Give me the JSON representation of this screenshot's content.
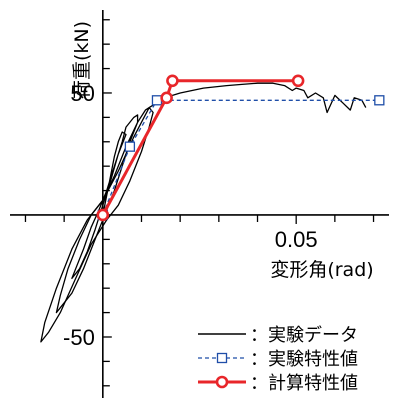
{
  "chart_data": {
    "type": "line",
    "xlabel": "変形角(rad)",
    "ylabel": "荷重(kN)",
    "xlim": [
      -0.024,
      0.074
    ],
    "ylim": [
      -75,
      84
    ],
    "x_tick_labels": [
      {
        "value": 0.05,
        "label": "0.05"
      }
    ],
    "y_tick_labels": [
      {
        "value": 50,
        "label": "50"
      },
      {
        "value": -50,
        "label": "-50"
      }
    ],
    "x_minor_step": 0.01,
    "y_minor_step": 10,
    "legend_position": "bottom-right",
    "colors": {
      "experiment": "#000000",
      "characteristic": "#1f4ea8",
      "calculated": "#e8262a"
    },
    "series": [
      {
        "name": "実験データ",
        "style": "solid-black",
        "loops": [
          [
            [
              0,
              0
            ],
            [
              0.001,
              8
            ],
            [
              0.002,
              16
            ],
            [
              0.003,
              24
            ],
            [
              0.004,
              30
            ],
            [
              0.005,
              34
            ],
            [
              0.006,
              33
            ],
            [
              0.004,
              25
            ],
            [
              0.002,
              14
            ],
            [
              0,
              4
            ],
            [
              -0.002,
              -6
            ],
            [
              -0.004,
              -15
            ],
            [
              -0.006,
              -22
            ],
            [
              -0.008,
              -26
            ],
            [
              -0.007,
              -22
            ],
            [
              -0.005,
              -14
            ],
            [
              -0.003,
              -5
            ],
            [
              -0.001,
              2
            ],
            [
              0.001,
              10
            ],
            [
              0.003,
              20
            ],
            [
              0.005,
              30
            ]
          ],
          [
            [
              0.005,
              30
            ],
            [
              0.006,
              36
            ],
            [
              0.008,
              40
            ],
            [
              0.009,
              41
            ],
            [
              0.009,
              38
            ],
            [
              0.007,
              30
            ],
            [
              0.005,
              20
            ],
            [
              0.003,
              10
            ],
            [
              0.001,
              2
            ],
            [
              -0.002,
              -10
            ],
            [
              -0.005,
              -22
            ],
            [
              -0.008,
              -32
            ],
            [
              -0.011,
              -38
            ],
            [
              -0.012,
              -40
            ],
            [
              -0.011,
              -33
            ],
            [
              -0.009,
              -22
            ],
            [
              -0.006,
              -10
            ],
            [
              -0.003,
              0
            ],
            [
              0,
              6
            ],
            [
              0.003,
              16
            ],
            [
              0.006,
              28
            ],
            [
              0.009,
              38
            ]
          ],
          [
            [
              0.009,
              38
            ],
            [
              0.011,
              43
            ],
            [
              0.012,
              44
            ],
            [
              0.013,
              42
            ],
            [
              0.012,
              36
            ],
            [
              0.01,
              26
            ],
            [
              0.007,
              14
            ],
            [
              0.004,
              4
            ],
            [
              0.001,
              -2
            ],
            [
              -0.003,
              -12
            ],
            [
              -0.007,
              -26
            ],
            [
              -0.011,
              -40
            ],
            [
              -0.014,
              -48
            ],
            [
              -0.016,
              -52
            ],
            [
              -0.015,
              -44
            ],
            [
              -0.012,
              -30
            ],
            [
              -0.008,
              -14
            ],
            [
              -0.004,
              -2
            ],
            [
              0,
              6
            ],
            [
              0.004,
              18
            ],
            [
              0.008,
              32
            ],
            [
              0.012,
              44
            ]
          ],
          [
            [
              0.012,
              44
            ],
            [
              0.016,
              48
            ],
            [
              0.02,
              50
            ],
            [
              0.026,
              52
            ],
            [
              0.032,
              53
            ],
            [
              0.036,
              53.5
            ],
            [
              0.04,
              54
            ],
            [
              0.044,
              54
            ],
            [
              0.047,
              53
            ],
            [
              0.049,
              51
            ],
            [
              0.05,
              52
            ],
            [
              0.052,
              51
            ],
            [
              0.053,
              48
            ],
            [
              0.055,
              50
            ],
            [
              0.057,
              48
            ],
            [
              0.058,
              42
            ],
            [
              0.06,
              49
            ],
            [
              0.062,
              46
            ],
            [
              0.064,
              43
            ],
            [
              0.065,
              48
            ],
            [
              0.067,
              47
            ],
            [
              0.068,
              44
            ]
          ]
        ]
      },
      {
        "name": "実験特性値",
        "style": "dashed-blue-square",
        "points": [
          [
            0,
            0
          ],
          [
            0.007,
            28
          ],
          [
            0.014,
            47
          ],
          [
            0.0715,
            47
          ]
        ]
      },
      {
        "name": "計算特性値",
        "style": "solid-red-circle",
        "points": [
          [
            0,
            0
          ],
          [
            0.0165,
            48
          ],
          [
            0.018,
            55
          ],
          [
            0.0505,
            55
          ]
        ]
      }
    ],
    "legend": [
      {
        "marker": "solid-black",
        "label": "：実験データ"
      },
      {
        "marker": "dashed-blue-square",
        "label": "：実験特性値"
      },
      {
        "marker": "solid-red-circle",
        "label": "：計算特性値"
      }
    ]
  }
}
